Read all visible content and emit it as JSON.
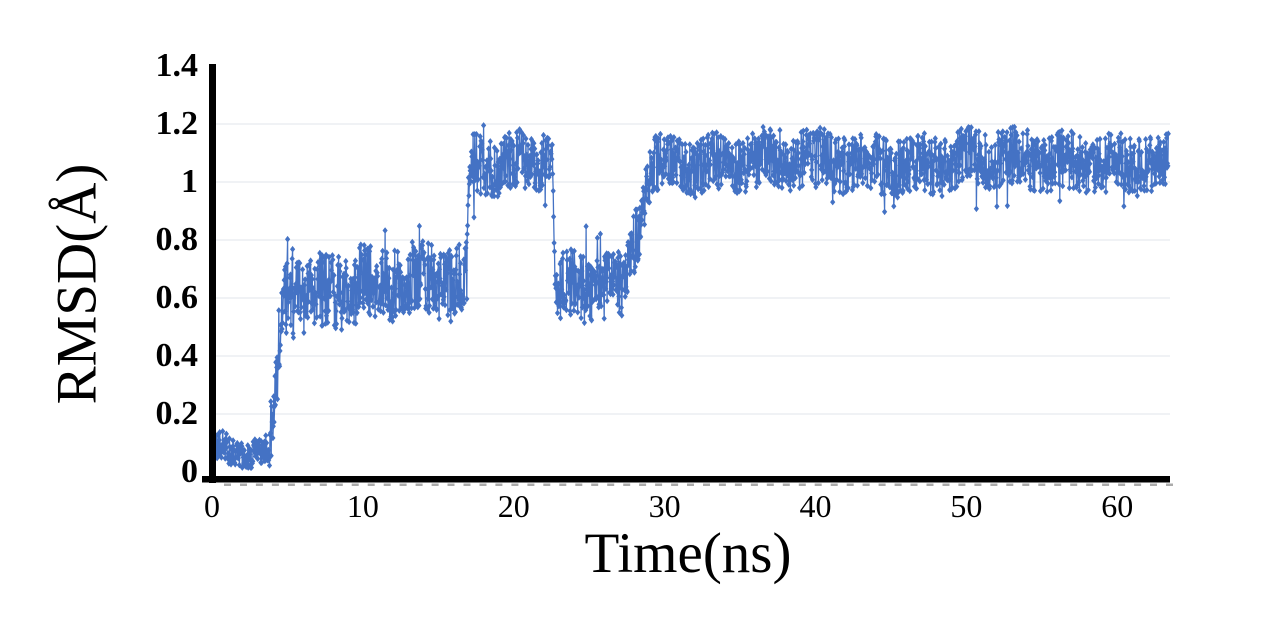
{
  "style": {
    "background": "#FFFFFF",
    "series_color": "#4472C4",
    "axis_color": "#000000",
    "grid_color": "#E8EBEF",
    "minor_tick_color": "#ABABAB",
    "text_color": "#000000"
  },
  "chart_data": {
    "type": "scatter",
    "title": "",
    "xlabel": "Time(ns)",
    "ylabel": "RMSD(Å)",
    "xlim": [
      0,
      63.5
    ],
    "ylim": [
      0,
      1.4
    ],
    "grid": {
      "horizontal": true,
      "vertical": false,
      "lines_at": [
        0.2,
        0.4,
        0.6,
        0.8,
        1,
        1.2
      ]
    },
    "legend": "none",
    "axes": {
      "x": {
        "label": "Time(ns)",
        "tick_values": [
          0,
          10,
          20,
          30,
          40,
          50,
          60
        ],
        "tick_labels": [
          "0",
          "10",
          "20",
          "30",
          "40",
          "50",
          "60"
        ]
      },
      "y": {
        "label": "RMSD(Å)",
        "tick_values": [
          0,
          0.2,
          0.4,
          0.6,
          0.8,
          1,
          1.2,
          1.4
        ],
        "tick_labels": [
          "0",
          "0.2",
          "0.4",
          "0.6",
          "0.8",
          "1",
          "1.2",
          "1.4"
        ]
      }
    },
    "minor_tick_marks": {
      "count": 60,
      "note": "row of tiny illegible gray minor labels under the x-axis"
    },
    "series": [
      {
        "name": "RMSD trace",
        "marker": "diamond",
        "marker_width_px": 5.2,
        "marker_height_px": 6.6,
        "line_width": 1.3,
        "points_per_ns": 36,
        "clamp_min": 0.015,
        "clamp_max": 1.195,
        "segments": [
          {
            "t0": 0.0,
            "t1": 3.8,
            "v0": 0.07,
            "v1": 0.07,
            "noise": 0.05,
            "spike_up": 0.01,
            "spike_dn": 0.0
          },
          {
            "t0": 3.8,
            "t1": 4.8,
            "v0": 0.09,
            "v1": 0.58,
            "noise": 0.11,
            "spike_up": 0.03,
            "spike_dn": 0.0
          },
          {
            "t0": 4.8,
            "t1": 16.9,
            "v0": 0.62,
            "v1": 0.66,
            "noise": 0.13,
            "spike_up": 0.02,
            "spike_dn": 0.008
          },
          {
            "t0": 16.9,
            "t1": 17.1,
            "v0": 0.8,
            "v1": 1.05,
            "noise": 0.11,
            "spike_up": 0.0,
            "spike_dn": 0.0
          },
          {
            "t0": 17.1,
            "t1": 22.6,
            "v0": 1.07,
            "v1": 1.08,
            "noise": 0.1,
            "spike_up": 0.004,
            "spike_dn": 0.012
          },
          {
            "t0": 22.6,
            "t1": 22.75,
            "v0": 1.0,
            "v1": 0.6,
            "noise": 0.06,
            "spike_up": 0.0,
            "spike_dn": 0.0
          },
          {
            "t0": 22.75,
            "t1": 27.4,
            "v0": 0.63,
            "v1": 0.62,
            "noise": 0.115,
            "spike_up": 0.02,
            "spike_dn": 0.008
          },
          {
            "t0": 27.4,
            "t1": 29.1,
            "v0": 0.67,
            "v1": 1.03,
            "noise": 0.11,
            "spike_up": 0.008,
            "spike_dn": 0.008
          },
          {
            "t0": 29.1,
            "t1": 63.4,
            "v0": 1.07,
            "v1": 1.07,
            "noise": 0.1,
            "spike_up": 0.005,
            "spike_dn": 0.012
          }
        ],
        "summary": "RMSD ~0.07 Å for 0-4 ns; steps up to ~0.65 Å for 5-17 ns; jumps to ~1.08 Å plateau for 17-22.6 ns; drops back to ~0.62 Å for 22.7-27.4 ns; rises through 27.4-29 ns and stays near ~1.07 Å out to ~63 ns."
      }
    ]
  }
}
